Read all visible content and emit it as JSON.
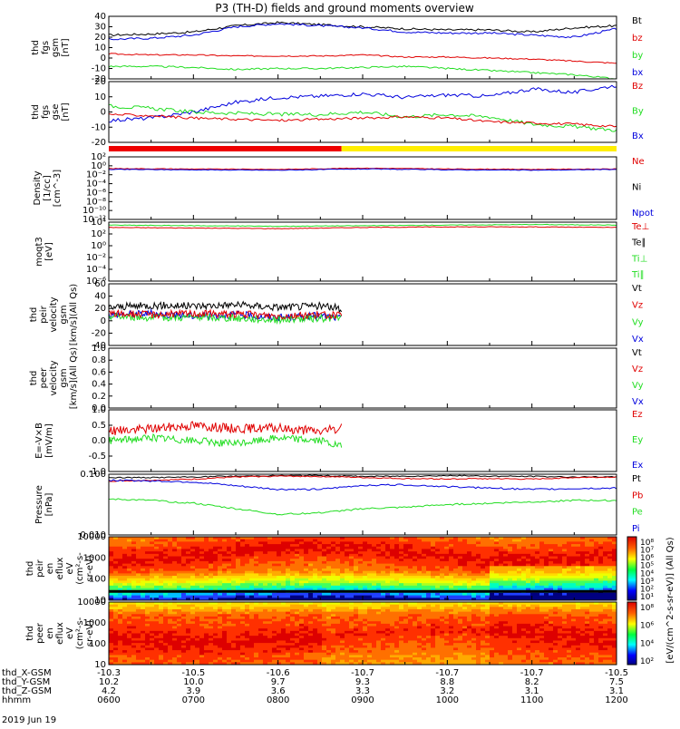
{
  "title": "P3 (TH-D) fields and ground moments overview",
  "date": "2019 Jun 19",
  "colorbar_label": "[eV/(cm^2-s-sr-eV)] (All Qs)",
  "colors": {
    "black": "#000000",
    "red": "#e00000",
    "green": "#22dd22",
    "blue": "#0000dd",
    "yellow": "#ffee00"
  },
  "orbit_rows": [
    {
      "label": "thd_X-GSM",
      "values": [
        "-10.3",
        "-10.5",
        "-10.6",
        "-10.7",
        "-10.7",
        "-10.7",
        "-10.5"
      ]
    },
    {
      "label": "thd_Y-GSM",
      "values": [
        "10.2",
        "10.0",
        "9.7",
        "9.3",
        "8.8",
        "8.2",
        "7.5"
      ]
    },
    {
      "label": "thd_Z-GSM",
      "values": [
        "4.2",
        "3.9",
        "3.6",
        "3.3",
        "3.2",
        "3.1",
        "3.1"
      ]
    },
    {
      "label": "hhmm",
      "values": [
        "0600",
        "0700",
        "0800",
        "0900",
        "1000",
        "1100",
        "1200"
      ]
    }
  ],
  "chart_data": [
    {
      "id": "fgs_gsm",
      "type": "line",
      "ylabel": [
        "thd",
        "fgs",
        "gsm",
        "[nT]"
      ],
      "ylim": [
        -20,
        40
      ],
      "yticks": [
        "40",
        "30",
        "20",
        "10",
        "0",
        "-10",
        "-20"
      ],
      "legend": [
        {
          "name": "Bt",
          "color": "black"
        },
        {
          "name": "bz",
          "color": "red"
        },
        {
          "name": "by",
          "color": "green"
        },
        {
          "name": "bx",
          "color": "blue"
        }
      ],
      "x": [
        6.0,
        6.5,
        7.0,
        7.5,
        8.0,
        8.5,
        9.0,
        9.5,
        10.0,
        10.5,
        11.0,
        11.5,
        12.0
      ],
      "series": [
        {
          "name": "Bt",
          "color": "black",
          "noise": 1.0,
          "values": [
            22,
            23,
            25,
            31,
            34,
            32,
            30,
            28,
            27,
            27,
            25,
            29,
            31
          ]
        },
        {
          "name": "bx",
          "color": "blue",
          "noise": 1.0,
          "values": [
            18,
            19,
            22,
            30,
            33,
            31,
            29,
            25,
            24,
            24,
            22,
            20,
            28
          ]
        },
        {
          "name": "bz",
          "color": "red",
          "noise": 0.6,
          "values": [
            4,
            3,
            3,
            2,
            2,
            2,
            3,
            1,
            1,
            0,
            -1,
            -3,
            -5
          ]
        },
        {
          "name": "by",
          "color": "green",
          "noise": 0.8,
          "values": [
            -8,
            -8,
            -9,
            -11,
            -10,
            -10,
            -9,
            -8,
            -10,
            -12,
            -14,
            -16,
            -20
          ]
        }
      ]
    },
    {
      "id": "fgs_gse",
      "type": "line",
      "ylabel": [
        "thd",
        "fgs",
        "gse",
        "[nT]"
      ],
      "ylim": [
        -25,
        25
      ],
      "yticks": [
        "20",
        "10",
        "0",
        "-10",
        "-20"
      ],
      "legend": [
        {
          "name": "Bz",
          "color": "red"
        },
        {
          "name": "By",
          "color": "green"
        },
        {
          "name": "Bx",
          "color": "blue"
        }
      ],
      "x": [
        6.0,
        6.5,
        7.0,
        7.5,
        8.0,
        8.5,
        9.0,
        9.5,
        10.0,
        10.5,
        11.0,
        11.5,
        12.0
      ],
      "series": [
        {
          "name": "Bx",
          "color": "blue",
          "noise": 1.5,
          "values": [
            -7,
            -5,
            0,
            8,
            12,
            13,
            15,
            12,
            14,
            13,
            19,
            16,
            22
          ]
        },
        {
          "name": "By",
          "color": "green",
          "noise": 1.5,
          "values": [
            5,
            3,
            0,
            -1,
            -2,
            -2,
            0,
            -4,
            -2,
            -4,
            -10,
            -12,
            -15
          ]
        },
        {
          "name": "Bz",
          "color": "red",
          "noise": 1.0,
          "values": [
            -2,
            -3,
            -5,
            -6,
            -7,
            -6,
            -5,
            -4,
            -5,
            -8,
            -9,
            -10,
            -12
          ]
        }
      ]
    },
    {
      "id": "density",
      "type": "line",
      "ylabel": [
        "Density",
        "[1/cc]",
        "[cm^-3]"
      ],
      "ylim": [
        -12,
        3
      ],
      "yticks": [
        "10²",
        "10⁰",
        "10⁻²",
        "10⁻⁴",
        "10⁻⁶",
        "10⁻⁸",
        "10⁻¹⁰",
        "10⁻¹²"
      ],
      "legend": [
        {
          "name": "Ne",
          "color": "red"
        },
        {
          "name": "Ni",
          "color": "black"
        },
        {
          "name": "Npot",
          "color": "blue"
        }
      ],
      "x": [
        6.0,
        7.0,
        8.0,
        9.0,
        10.0,
        11.0,
        12.0
      ],
      "series": [
        {
          "name": "Ne",
          "color": "red",
          "noise": 0.08,
          "values": [
            0.2,
            0.1,
            0.0,
            0.3,
            0.1,
            0.0,
            0.1
          ]
        },
        {
          "name": "Npot",
          "color": "blue",
          "noise": 0.08,
          "values": [
            0.0,
            -0.1,
            -0.2,
            0.1,
            -0.1,
            -0.2,
            0.0
          ]
        }
      ]
    },
    {
      "id": "temperature",
      "type": "line",
      "ylabel": [
        "moqt3",
        "[eV]"
      ],
      "ylim": [
        -6,
        4
      ],
      "yticks": [
        "10⁴",
        "10²",
        "10⁰",
        "10⁻²",
        "10⁻⁴",
        "10⁻⁶"
      ],
      "legend": [
        {
          "name": "Te⊥",
          "color": "red"
        },
        {
          "name": "Te∥",
          "color": "black"
        },
        {
          "name": "Ti⊥",
          "color": "green"
        },
        {
          "name": "Ti∥",
          "color": "green"
        }
      ],
      "x": [
        6.0,
        7.0,
        8.0,
        9.0,
        10.0,
        11.0,
        12.0
      ],
      "series": [
        {
          "name": "Ti",
          "color": "green",
          "noise": 0.05,
          "values": [
            3.5,
            3.4,
            3.3,
            3.4,
            3.5,
            3.6,
            3.5
          ]
        },
        {
          "name": "Te",
          "color": "red",
          "noise": 0.05,
          "values": [
            3.1,
            3.0,
            2.9,
            3.1,
            3.2,
            3.2,
            3.1
          ]
        }
      ]
    },
    {
      "id": "peir_velocity",
      "type": "line",
      "ylabel": [
        "thd",
        "peir",
        "velocity",
        "gsm",
        "[km/s](All Qs)"
      ],
      "ylim": [
        -40,
        60
      ],
      "yticks": [
        "60",
        "40",
        "20",
        "0",
        "-20",
        "-40"
      ],
      "legend": [
        {
          "name": "Vt",
          "color": "black"
        },
        {
          "name": "Vz",
          "color": "red"
        },
        {
          "name": "Vy",
          "color": "green"
        },
        {
          "name": "Vx",
          "color": "blue"
        }
      ],
      "x": [
        6.0,
        6.5,
        7.0,
        7.5,
        8.0,
        8.5,
        8.75
      ],
      "series": [
        {
          "name": "Vt",
          "color": "black",
          "noise": 6,
          "values": [
            22,
            25,
            24,
            26,
            22,
            24,
            20
          ]
        },
        {
          "name": "Vx",
          "color": "blue",
          "noise": 6,
          "values": [
            10,
            12,
            8,
            10,
            5,
            8,
            4
          ]
        },
        {
          "name": "Vy",
          "color": "green",
          "noise": 6,
          "values": [
            8,
            5,
            6,
            4,
            2,
            4,
            5
          ]
        },
        {
          "name": "Vz",
          "color": "red",
          "noise": 6,
          "values": [
            12,
            10,
            12,
            11,
            8,
            10,
            8
          ]
        }
      ]
    },
    {
      "id": "peer_velocity",
      "type": "line",
      "ylabel": [
        "thd",
        "peer",
        "velocity",
        "gsm",
        "[km/s](All Qs)"
      ],
      "ylim": [
        0,
        1
      ],
      "yticks": [
        "1.0",
        "0.8",
        "0.6",
        "0.4",
        "0.2",
        "0.0"
      ],
      "legend": [
        {
          "name": "Vt",
          "color": "black"
        },
        {
          "name": "Vz",
          "color": "red"
        },
        {
          "name": "Vy",
          "color": "green"
        },
        {
          "name": "Vx",
          "color": "blue"
        }
      ],
      "x": [],
      "series": []
    },
    {
      "id": "efield",
      "type": "line",
      "ylabel": [
        "E=-V×B",
        "[mV/m]"
      ],
      "ylim": [
        -1,
        1
      ],
      "yticks": [
        "1.0",
        "0.5",
        "0.0",
        "-0.5",
        "-1.0"
      ],
      "legend": [
        {
          "name": "Ez",
          "color": "red"
        },
        {
          "name": "Ey",
          "color": "green"
        },
        {
          "name": "Ex",
          "color": "blue"
        }
      ],
      "x": [
        6.0,
        6.5,
        7.0,
        7.5,
        8.0,
        8.5,
        8.75
      ],
      "series": [
        {
          "name": "Ey",
          "color": "green",
          "noise": 0.12,
          "values": [
            0.0,
            0.1,
            0.0,
            -0.1,
            0.1,
            0.0,
            -0.2
          ]
        },
        {
          "name": "Ez",
          "color": "red",
          "noise": 0.15,
          "values": [
            0.3,
            0.4,
            0.5,
            0.4,
            0.4,
            0.3,
            0.4
          ]
        }
      ]
    },
    {
      "id": "pressure",
      "type": "line",
      "log": true,
      "ylabel": [
        "Pressure",
        "[nPa]"
      ],
      "ylim": [
        -2.7,
        -0.5
      ],
      "yticks": [
        "0.100",
        "0.010"
      ],
      "legend": [
        {
          "name": "Pt",
          "color": "black"
        },
        {
          "name": "Pb",
          "color": "red"
        },
        {
          "name": "Pe",
          "color": "green"
        },
        {
          "name": "Pi",
          "color": "blue"
        }
      ],
      "x": [
        6.0,
        6.5,
        7.0,
        7.5,
        8.0,
        8.5,
        9.0,
        9.5,
        10.0,
        10.5,
        11.0,
        11.5,
        12.0
      ],
      "series": [
        {
          "name": "Pt",
          "color": "black",
          "noise": 0.02,
          "values": [
            -0.62,
            -0.62,
            -0.6,
            -0.57,
            -0.55,
            -0.55,
            -0.58,
            -0.57,
            -0.55,
            -0.57,
            -0.58,
            -0.6,
            -0.6
          ]
        },
        {
          "name": "Pb",
          "color": "red",
          "noise": 0.02,
          "values": [
            -0.75,
            -0.72,
            -0.68,
            -0.6,
            -0.57,
            -0.58,
            -0.62,
            -0.66,
            -0.67,
            -0.66,
            -0.68,
            -0.62,
            -0.6
          ]
        },
        {
          "name": "Pi",
          "color": "blue",
          "noise": 0.03,
          "values": [
            -0.72,
            -0.74,
            -0.78,
            -0.92,
            -1.05,
            -1.05,
            -0.9,
            -0.88,
            -0.95,
            -1.0,
            -1.05,
            -1.02,
            -1.0
          ]
        },
        {
          "name": "Pe",
          "color": "green",
          "noise": 0.03,
          "values": [
            -1.4,
            -1.45,
            -1.55,
            -1.75,
            -1.95,
            -1.9,
            -1.75,
            -1.7,
            -1.6,
            -1.55,
            -1.5,
            -1.45,
            -1.45
          ]
        }
      ]
    },
    {
      "id": "peir_eflux",
      "type": "heatmap",
      "ylabel": [
        "thd",
        "peir",
        "en",
        "eflux",
        "eV",
        "(cm²-s-",
        "sr-eV)"
      ],
      "ylim": [
        5,
        20000
      ],
      "yticks": [
        "10000",
        "1000",
        "100",
        "10"
      ]
    },
    {
      "id": "peer_eflux",
      "type": "heatmap",
      "ylabel": [
        "thd",
        "peer",
        "en",
        "eflux",
        "eV",
        "(cm²-s-",
        "sr-eV)"
      ],
      "ylim": [
        5,
        20000
      ],
      "yticks": [
        "10000",
        "1000",
        "100",
        "10"
      ]
    }
  ],
  "colorbar": {
    "ticks_top": [
      "10⁸",
      "10⁷",
      "10⁶",
      "10⁵",
      "10⁴",
      "10³",
      "10²",
      "10¹"
    ],
    "ticks_bottom": [
      "10⁸",
      "10⁶",
      "10⁴",
      "10²"
    ]
  }
}
